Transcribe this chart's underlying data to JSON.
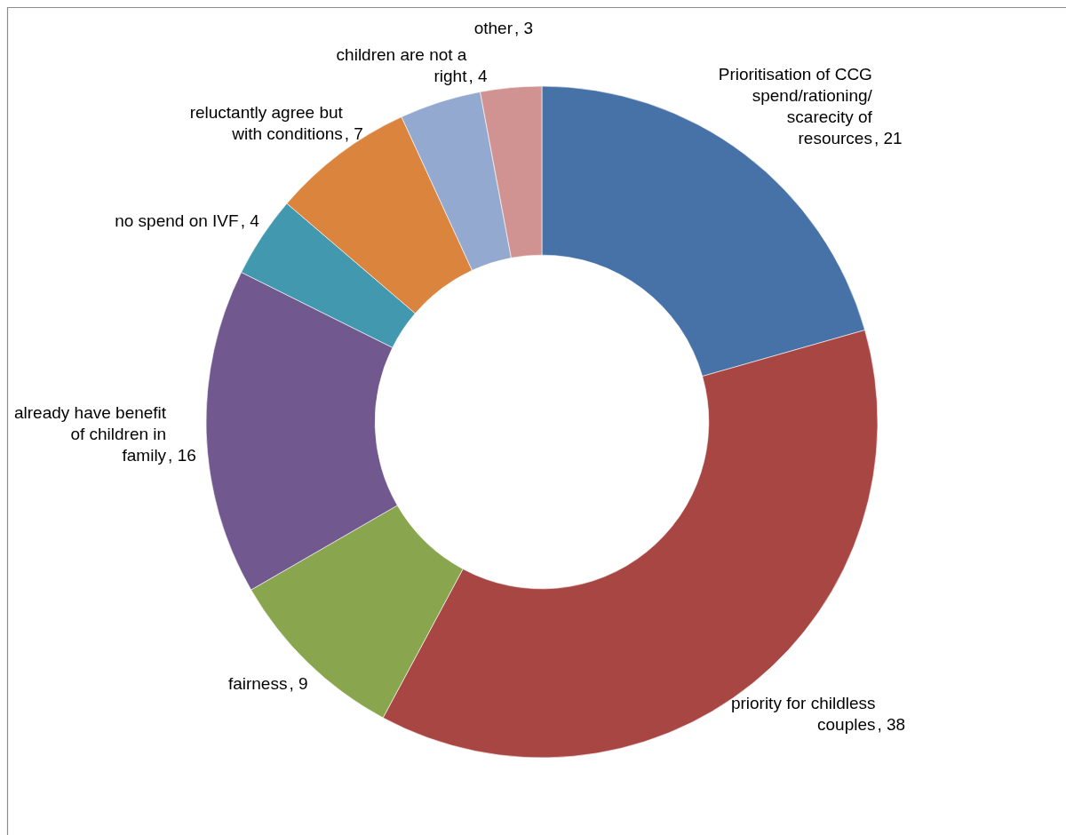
{
  "chart_data": {
    "type": "donut",
    "categories": [
      "Prioritisation of CCG spend/rationing/ scarecity of resources",
      "priority for childless couples",
      "fairness",
      "already have benefit of children in family",
      "no spend on IVF",
      "reluctantly agree but with conditions",
      "children are not a right",
      "other"
    ],
    "values": [
      21,
      38,
      9,
      16,
      4,
      7,
      4,
      3
    ],
    "value_labels": [
      ", 21",
      ", 38",
      ", 9",
      ", 16",
      ", 4",
      ", 7",
      ", 4",
      ", 3"
    ],
    "colors": [
      "#4672a7",
      "#a84644",
      "#89a54e",
      "#71588f",
      "#4198af",
      "#db843d",
      "#93a9cf",
      "#d19392"
    ]
  }
}
